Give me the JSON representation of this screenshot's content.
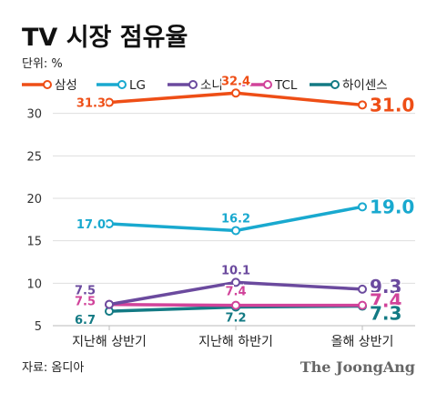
{
  "title": "TV 시장 점유율",
  "unit_label": "단위: %",
  "source": "자료: 옴디아",
  "brand": "The JoongAng",
  "chart_data": {
    "type": "line",
    "categories": [
      "지난해 상반기",
      "지난해 하반기",
      "올해 상반기"
    ],
    "yticks": [
      5,
      10,
      15,
      20,
      25,
      30
    ],
    "ylim": [
      5,
      35
    ],
    "grid": true,
    "legend": "top-left",
    "series": [
      {
        "name": "삼성",
        "values": [
          31.3,
          32.4,
          31.0
        ],
        "labels": [
          "31.3",
          "32.4",
          "31.0"
        ],
        "color": "#ee4e16"
      },
      {
        "name": "LG",
        "values": [
          17.0,
          16.2,
          19.0
        ],
        "labels": [
          "17.0",
          "16.2",
          "19.0"
        ],
        "color": "#19a9cf"
      },
      {
        "name": "소니",
        "values": [
          7.5,
          10.1,
          9.3
        ],
        "labels": [
          "7.5",
          "10.1",
          "9.3"
        ],
        "color": "#6b4a9e"
      },
      {
        "name": "TCL",
        "values": [
          7.5,
          7.4,
          7.4
        ],
        "labels": [
          "7.5",
          "7.4",
          "7.4"
        ],
        "color": "#d1439a"
      },
      {
        "name": "하이센스",
        "values": [
          6.7,
          7.2,
          7.3
        ],
        "labels": [
          "6.7",
          "7.2",
          "7.3"
        ],
        "color": "#137a84"
      }
    ]
  }
}
